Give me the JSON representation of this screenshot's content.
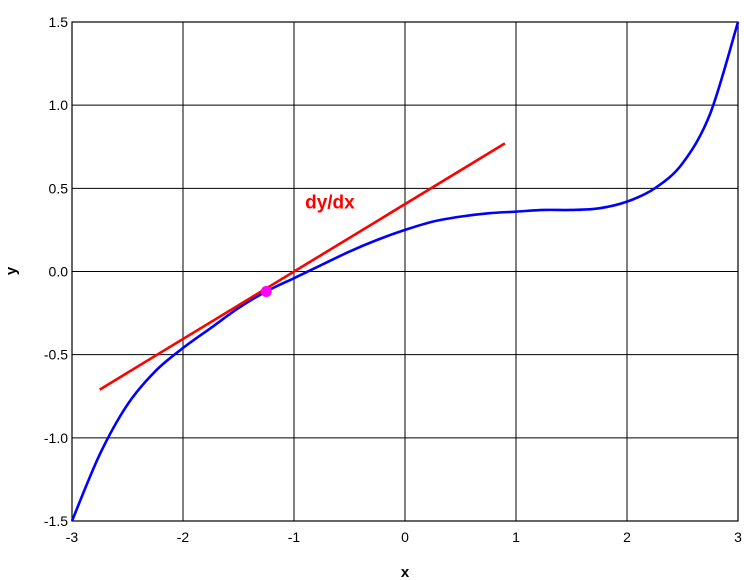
{
  "chart_data": {
    "type": "line",
    "title": "",
    "xlabel": "x",
    "ylabel": "y",
    "xlim": [
      -3,
      3
    ],
    "ylim": [
      -1.5,
      1.5
    ],
    "x_ticks": [
      -3,
      -2,
      -1,
      0,
      1,
      2,
      3
    ],
    "y_ticks": [
      -1.5,
      -1.0,
      -0.5,
      0.0,
      0.5,
      1.0,
      1.5
    ],
    "x_tick_labels": [
      "-3",
      "-2",
      "-1",
      "0",
      "1",
      "2",
      "3"
    ],
    "y_tick_labels": [
      "-1.5",
      "-1.0",
      "-0.5",
      "0.0",
      "0.5",
      "1.0",
      "1.5"
    ],
    "grid": true,
    "legend": "none",
    "series": [
      {
        "color": "#0000ff",
        "x": [
          -3.0,
          -2.75,
          -2.5,
          -2.25,
          -2.0,
          -1.75,
          -1.5,
          -1.25,
          -1.0,
          -0.75,
          -0.5,
          -0.25,
          0.0,
          0.25,
          0.5,
          0.75,
          1.0,
          1.25,
          1.5,
          1.75,
          2.0,
          2.25,
          2.5,
          2.75,
          3.0
        ],
        "y": [
          -1.5,
          -1.1,
          -0.8,
          -0.6,
          -0.46,
          -0.34,
          -0.22,
          -0.12,
          -0.04,
          0.04,
          0.12,
          0.19,
          0.25,
          0.3,
          0.33,
          0.35,
          0.36,
          0.37,
          0.37,
          0.38,
          0.42,
          0.5,
          0.65,
          0.95,
          1.5
        ]
      },
      {
        "color": "#ff0000",
        "x": [
          -2.75,
          0.9
        ],
        "y": [
          -0.71,
          0.77
        ]
      }
    ],
    "points": [
      {
        "x": -1.25,
        "y": -0.12,
        "color": "#ff00ff"
      }
    ],
    "annotations": [
      {
        "text": "dy/dx",
        "x": -0.9,
        "y": 0.38,
        "color": "#ff0000"
      }
    ]
  }
}
